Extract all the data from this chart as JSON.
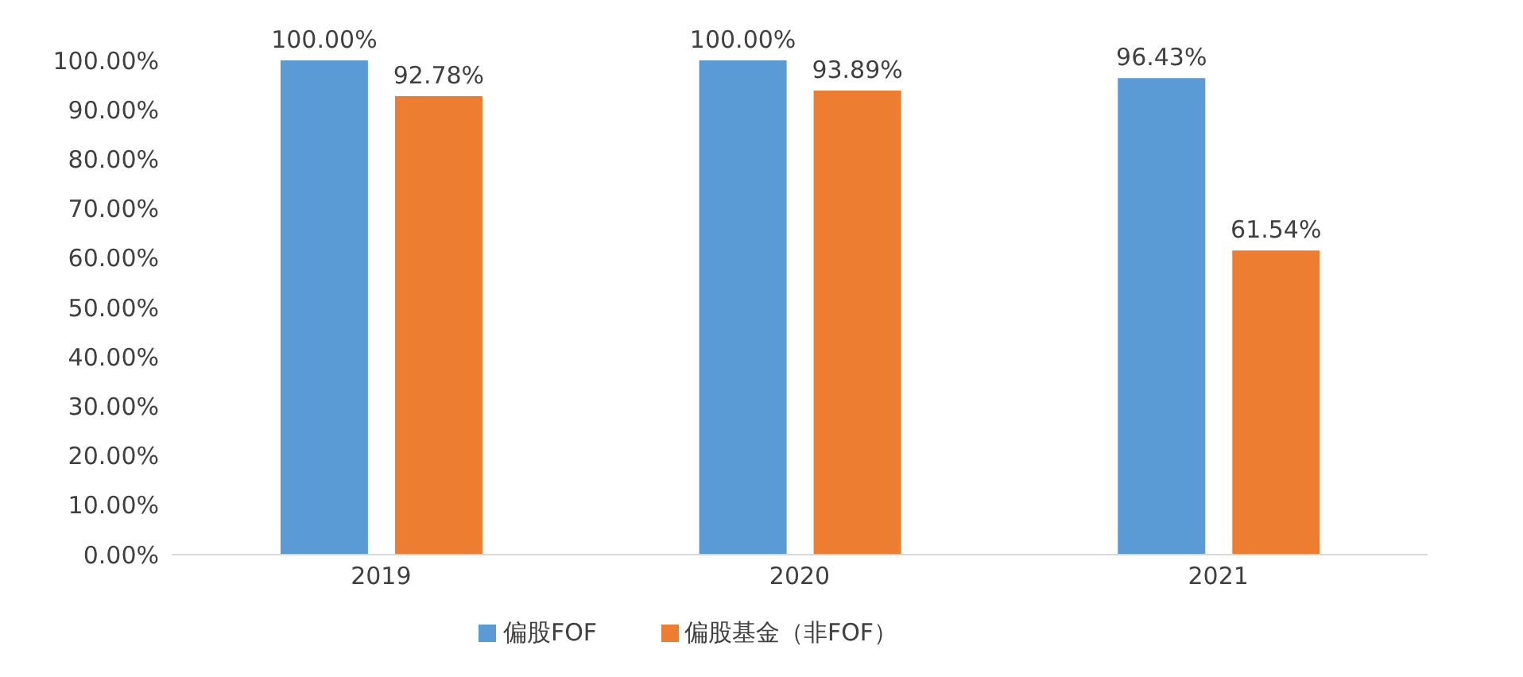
{
  "chart_data": {
    "type": "bar",
    "categories": [
      "2019",
      "2020",
      "2021"
    ],
    "series": [
      {
        "name": "偏股FOF",
        "color": "#5b9bd5",
        "values": [
          100,
          100,
          96.43
        ],
        "value_labels": [
          "100.00%",
          "100.00%",
          "96.43%"
        ]
      },
      {
        "name": "偏股基金（非FOF）",
        "color": "#ed7d31",
        "values": [
          92.78,
          93.89,
          61.54
        ],
        "value_labels": [
          "92.78%",
          "93.89%",
          "61.54%"
        ]
      }
    ],
    "ylim": [
      0,
      100
    ],
    "yticks": [
      {
        "value": 0,
        "label": "0.00%"
      },
      {
        "value": 10,
        "label": "10.00%"
      },
      {
        "value": 20,
        "label": "20.00%"
      },
      {
        "value": 30,
        "label": "30.00%"
      },
      {
        "value": 40,
        "label": "40.00%"
      },
      {
        "value": 50,
        "label": "50.00%"
      },
      {
        "value": 60,
        "label": "60.00%"
      },
      {
        "value": 70,
        "label": "70.00%"
      },
      {
        "value": 80,
        "label": "80.00%"
      },
      {
        "value": 90,
        "label": "90.00%"
      },
      {
        "value": 100,
        "label": "100.00%"
      }
    ],
    "grid": false,
    "legend": "bottom"
  }
}
